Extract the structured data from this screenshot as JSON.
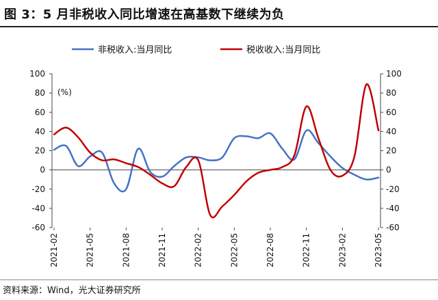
{
  "header": {
    "title": "图 3：5 月非税收入同比增速在高基数下继续为负"
  },
  "footer": {
    "source": "资料来源：Wind，光大证券研究所"
  },
  "chart_data": {
    "type": "line",
    "unit_label": "(%)",
    "legend_position": "top",
    "grid": false,
    "x_tick_labels": [
      "2021-02",
      "2021-05",
      "2021-08",
      "2021-11",
      "2022-02",
      "2022-05",
      "2022-08",
      "2022-11",
      "2023-02",
      "2023-05"
    ],
    "x": [
      "2021-02",
      "2021-03",
      "2021-04",
      "2021-05",
      "2021-06",
      "2021-07",
      "2021-08",
      "2021-09",
      "2021-10",
      "2021-11",
      "2021-12",
      "2022-01",
      "2022-02",
      "2022-03",
      "2022-04",
      "2022-05",
      "2022-06",
      "2022-07",
      "2022-08",
      "2022-09",
      "2022-10",
      "2022-11",
      "2022-12",
      "2023-01",
      "2023-02",
      "2023-03",
      "2023-04",
      "2023-05"
    ],
    "y_left": {
      "min": -60,
      "max": 100,
      "ticks": [
        100,
        80,
        60,
        40,
        20,
        0,
        -20,
        -40,
        -60
      ]
    },
    "y_right": {
      "min": -60,
      "max": 100,
      "ticks": [
        100,
        80,
        60,
        40,
        20,
        0,
        -20,
        -40,
        -60
      ]
    },
    "series": [
      {
        "name": "非税收入:当月同比",
        "color": "#4472C4",
        "values": [
          21,
          25,
          4,
          14,
          18,
          -14,
          -20,
          22,
          -2,
          -7,
          4,
          13,
          13,
          10,
          13,
          33,
          35,
          33,
          38,
          22,
          11,
          41,
          28,
          14,
          2,
          -5,
          -10,
          -8
        ]
      },
      {
        "name": "税收收入:当月同比",
        "color": "#C00000",
        "values": [
          37,
          44,
          34,
          18,
          10,
          11,
          7,
          3,
          -5,
          -14,
          -17,
          3,
          10,
          -47,
          -38,
          -26,
          -12,
          -3,
          0,
          3,
          15,
          66,
          33,
          0,
          -6,
          14,
          89,
          41
        ]
      }
    ]
  }
}
